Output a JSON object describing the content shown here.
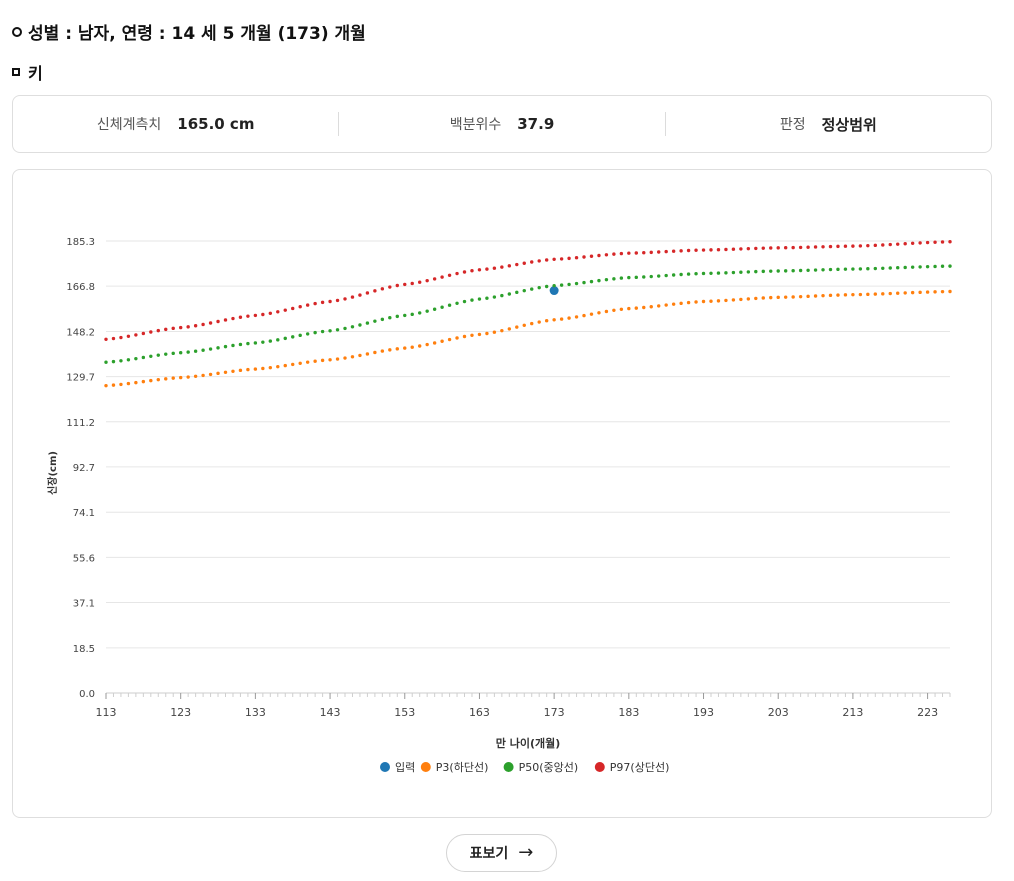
{
  "header": {
    "title": "성별 : 남자, 연령 : 14 세 5 개월 (173) 개월",
    "subtitle": "키"
  },
  "summary": {
    "measure_label": "신체계측치",
    "measure_value": "165.0 cm",
    "percentile_label": "백분위수",
    "percentile_value": "37.9",
    "judgement_label": "판정",
    "judgement_value": "정상범위"
  },
  "table_button": {
    "label": "표보기",
    "icon": "arrow-right-icon"
  },
  "chart_data": {
    "type": "scatter",
    "xlabel": "만 나이(개월)",
    "ylabel": "신장(cm)",
    "xlim": [
      113,
      226
    ],
    "ylim": [
      0,
      185.3
    ],
    "x_ticks": [
      113,
      123,
      133,
      143,
      153,
      163,
      173,
      183,
      193,
      203,
      213,
      223
    ],
    "y_ticks": [
      "0.0",
      "18.5",
      "37.1",
      "55.6",
      "74.1",
      "92.7",
      "111.2",
      "129.7",
      "148.2",
      "166.8",
      "185.3"
    ],
    "grid": true,
    "legend_position": "bottom",
    "series": [
      {
        "name": "입력",
        "color": "#1f77b4",
        "points": [
          [
            173,
            165.0
          ]
        ]
      },
      {
        "name": "P3(하단선)",
        "color": "#ff7f0e",
        "points": [
          [
            113,
            126.0
          ],
          [
            123,
            129.3
          ],
          [
            133,
            132.8
          ],
          [
            143,
            136.6
          ],
          [
            153,
            141.4
          ],
          [
            163,
            147.0
          ],
          [
            173,
            153.0
          ],
          [
            183,
            157.6
          ],
          [
            193,
            160.5
          ],
          [
            203,
            162.2
          ],
          [
            213,
            163.3
          ],
          [
            226,
            164.6
          ]
        ]
      },
      {
        "name": "P50(중앙선)",
        "color": "#2ca02c",
        "points": [
          [
            113,
            135.6
          ],
          [
            123,
            139.5
          ],
          [
            133,
            143.5
          ],
          [
            143,
            148.5
          ],
          [
            153,
            154.8
          ],
          [
            163,
            161.5
          ],
          [
            173,
            167.0
          ],
          [
            183,
            170.3
          ],
          [
            193,
            172.0
          ],
          [
            203,
            173.0
          ],
          [
            213,
            173.8
          ],
          [
            226,
            175.0
          ]
        ]
      },
      {
        "name": "P97(상단선)",
        "color": "#d62728",
        "points": [
          [
            113,
            145.0
          ],
          [
            123,
            149.8
          ],
          [
            133,
            154.8
          ],
          [
            143,
            160.5
          ],
          [
            153,
            167.5
          ],
          [
            163,
            173.5
          ],
          [
            173,
            177.8
          ],
          [
            183,
            180.3
          ],
          [
            193,
            181.6
          ],
          [
            203,
            182.5
          ],
          [
            213,
            183.2
          ],
          [
            226,
            185.0
          ]
        ]
      }
    ]
  }
}
